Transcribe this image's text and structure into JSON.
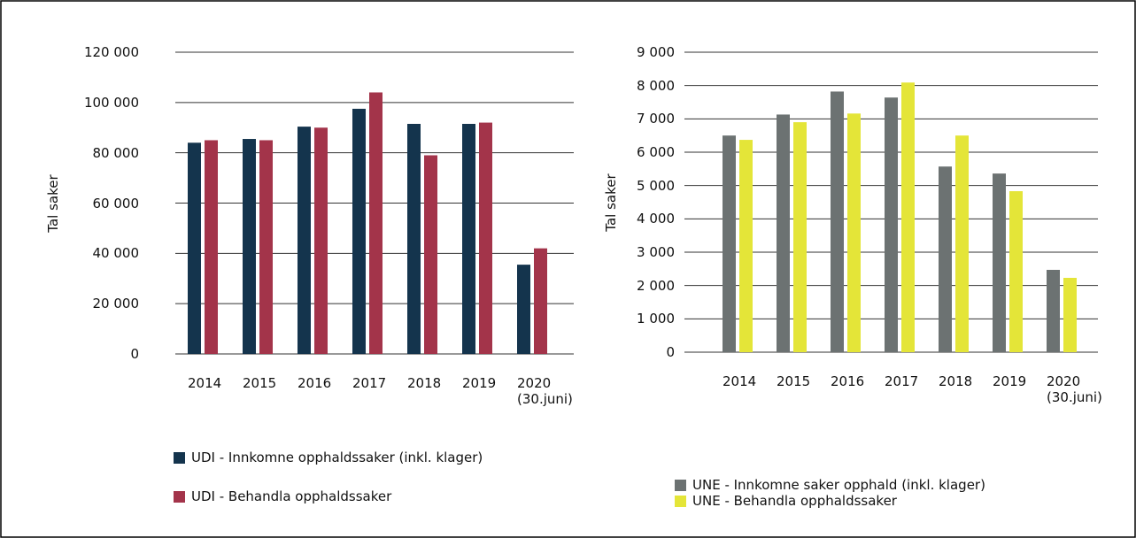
{
  "chart_data": [
    {
      "type": "bar",
      "y_label": "Tal saker",
      "categories": [
        "2014",
        "2015",
        "2016",
        "2017",
        "2018",
        "2019",
        "2020 (30.juni)"
      ],
      "series": [
        {
          "name": "UDI - Innkomne opphaldssaker (inkl. klager)",
          "color": "#14344d",
          "values": [
            84000,
            85500,
            90400,
            97500,
            91500,
            91500,
            35500
          ]
        },
        {
          "name": "UDI - Behandla opphaldssaker",
          "color": "#a3344a",
          "values": [
            85000,
            85000,
            90000,
            104000,
            79000,
            92000,
            42000
          ]
        }
      ],
      "ylim": [
        0,
        120000
      ],
      "yticks": [
        0,
        {
          "value": 20000,
          "label": "20 000"
        },
        {
          "value": 40000,
          "label": "40 000"
        },
        {
          "value": 60000,
          "label": "60 000"
        },
        {
          "value": 80000,
          "label": "80 000"
        },
        {
          "value": 100000,
          "label": "100 000"
        },
        {
          "value": 120000,
          "label": "120 000"
        }
      ],
      "grid": true
    },
    {
      "type": "bar",
      "y_label": "Tal saker",
      "categories": [
        "2014",
        "2015",
        "2016",
        "2017",
        "2018",
        "2019",
        "2020 (30.juni)"
      ],
      "series": [
        {
          "name": "UNE - Innkomne saker opphald (inkl. klager)",
          "color": "#6c7272",
          "values": [
            6500,
            7130,
            7820,
            7640,
            5570,
            5360,
            2470
          ]
        },
        {
          "name": "UNE - Behandla opphaldssaker",
          "color": "#e4e538",
          "values": [
            6370,
            6900,
            7160,
            8090,
            6500,
            4830,
            2230
          ]
        }
      ],
      "ylim": [
        0,
        9000
      ],
      "yticks": [
        0,
        {
          "value": 1000,
          "label": "1 000"
        },
        {
          "value": 2000,
          "label": "2 000"
        },
        {
          "value": 3000,
          "label": "3 000"
        },
        {
          "value": 4000,
          "label": "4 000"
        },
        {
          "value": 5000,
          "label": "5 000"
        },
        {
          "value": 6000,
          "label": "6 000"
        },
        {
          "value": 7000,
          "label": "7 000"
        },
        {
          "value": 8000,
          "label": "8 000"
        },
        {
          "value": 9000,
          "label": "9 000"
        }
      ],
      "grid": true
    }
  ]
}
